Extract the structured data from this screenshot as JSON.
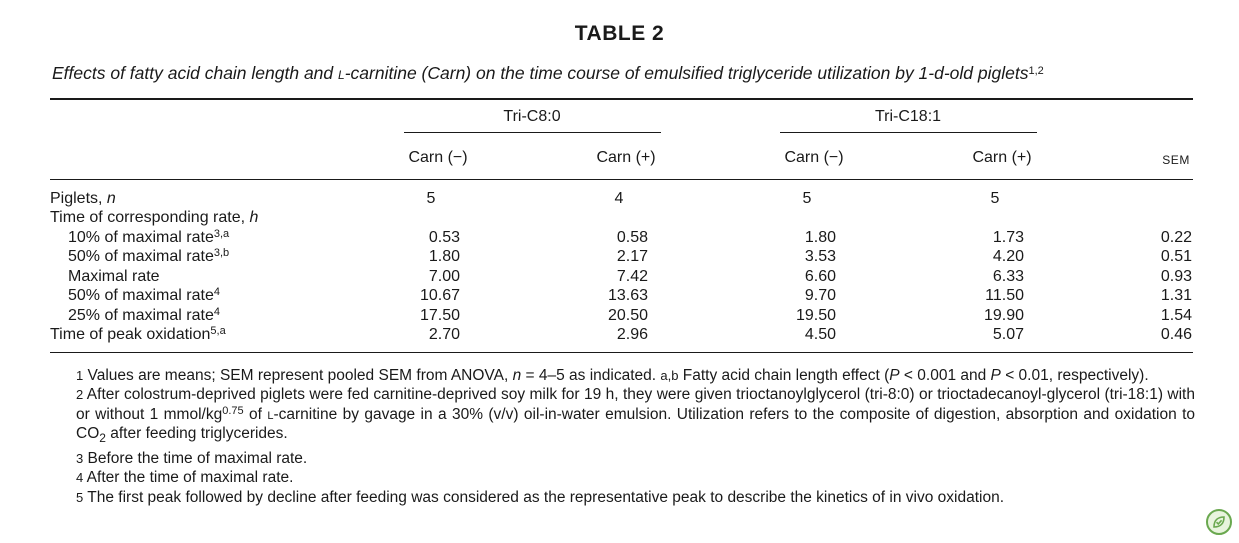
{
  "table": {
    "label": "TABLE 2",
    "caption_pre": "Effects of fatty acid chain length and ",
    "caption_sc": "l",
    "caption_post": "-carnitine (Carn) on the time course of emulsified triglyceride utilization by 1-d-old piglets",
    "caption_sup": "1,2",
    "groups": [
      "Tri-C8:0",
      "Tri-C18:1"
    ],
    "col_headers": [
      "Carn (−)",
      "Carn (+)",
      "Carn (−)",
      "Carn (+)",
      "SEM"
    ],
    "rows": [
      {
        "label": "Piglets, ",
        "label_italic": "n",
        "sup": "",
        "indent": false,
        "values": [
          "5",
          "4",
          "5",
          "5",
          ""
        ]
      },
      {
        "label": "Time of corresponding rate, ",
        "label_italic": "h",
        "sup": "",
        "indent": false,
        "values": [
          "",
          "",
          "",
          "",
          ""
        ]
      },
      {
        "label": "10% of maximal rate",
        "label_italic": "",
        "sup": "3,a",
        "indent": true,
        "values": [
          "0.53",
          "0.58",
          "1.80",
          "1.73",
          "0.22"
        ]
      },
      {
        "label": "50% of maximal rate",
        "label_italic": "",
        "sup": "3,b",
        "indent": true,
        "values": [
          "1.80",
          "2.17",
          "3.53",
          "4.20",
          "0.51"
        ]
      },
      {
        "label": "Maximal rate",
        "label_italic": "",
        "sup": "",
        "indent": true,
        "values": [
          "7.00",
          "7.42",
          "6.60",
          "6.33",
          "0.93"
        ]
      },
      {
        "label": "50% of maximal rate",
        "label_italic": "",
        "sup": "4",
        "indent": true,
        "values": [
          "10.67",
          "13.63",
          "9.70",
          "11.50",
          "1.31"
        ]
      },
      {
        "label": "25% of maximal rate",
        "label_italic": "",
        "sup": "4",
        "indent": true,
        "values": [
          "17.50",
          "20.50",
          "19.50",
          "19.90",
          "1.54"
        ]
      },
      {
        "label": "Time of peak oxidation",
        "label_italic": "",
        "sup": "5,a",
        "indent": false,
        "values": [
          "2.70",
          "2.96",
          "4.50",
          "5.07",
          "0.46"
        ]
      }
    ]
  },
  "footnotes": {
    "f1_num": "1",
    "f1_a": " Values are means; ",
    "f1_sem1": "SEM",
    "f1_b": " represent pooled ",
    "f1_sem2": "SEM",
    "f1_c": " from ANOVA, ",
    "f1_n": "n",
    "f1_d": " = 4–5 as indicated. ",
    "f1_ab": "a,b",
    "f1_e": " Fatty acid chain length effect (",
    "f1_P1": "P",
    "f1_f": " < 0.001 and ",
    "f1_P2": "P",
    "f1_g": " < 0.01, respectively).",
    "f2_num": "2",
    "f2_a": " After colostrum-deprived piglets were fed carnitine-deprived soy milk for 19 h, they were given trioctanoylglycerol (tri-8:0) or trioctadecanoyl-glycerol (tri-18:1) with or without 1 mmol/kg",
    "f2_exp": "0.75",
    "f2_b": " of ",
    "f2_L": "l",
    "f2_c": "-carnitine by gavage in a 30% (v/v) oil-in-water emulsion. Utilization refers to the composite of digestion, absorption and oxidation to CO",
    "f2_sub": "2",
    "f2_d": " after feeding triglycerides.",
    "f3_num": "3",
    "f3": " Before the time of maximal rate.",
    "f4_num": "4",
    "f4": " After the time of maximal rate.",
    "f5_num": "5",
    "f5": " The first peak followed by decline after feeding was considered as the representative peak to describe the kinetics of in vivo oxidation."
  },
  "badge_icon": "leaf-check-icon"
}
